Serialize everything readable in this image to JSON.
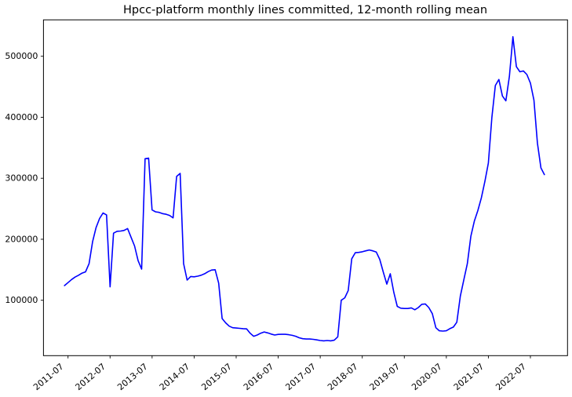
{
  "figure": {
    "background": "#ffffff"
  },
  "chart_data": {
    "type": "line",
    "title": "Hpcc-platform monthly lines committed, 12-month rolling mean",
    "xlabel": "",
    "ylabel": "",
    "grid": false,
    "legend": "none",
    "background": "#ffffff",
    "frame_color": "#000000",
    "tick_color": "#000000",
    "ylim": [
      9000,
      560000
    ],
    "xlim": [
      "2010-12",
      "2023-05"
    ],
    "y_ticks": [
      {
        "label": "100000",
        "value": 100000
      },
      {
        "label": "200000",
        "value": 200000
      },
      {
        "label": "300000",
        "value": 300000
      },
      {
        "label": "400000",
        "value": 400000
      },
      {
        "label": "500000",
        "value": 500000
      }
    ],
    "x_ticks": [
      {
        "label": "2011-07",
        "month_index": 1
      },
      {
        "label": "2012-07",
        "month_index": 13
      },
      {
        "label": "2013-07",
        "month_index": 25
      },
      {
        "label": "2014-07",
        "month_index": 37
      },
      {
        "label": "2015-07",
        "month_index": 49
      },
      {
        "label": "2016-07",
        "month_index": 61
      },
      {
        "label": "2017-07",
        "month_index": 73
      },
      {
        "label": "2018-07",
        "month_index": 85
      },
      {
        "label": "2019-07",
        "month_index": 97
      },
      {
        "label": "2020-07",
        "month_index": 109
      },
      {
        "label": "2021-07",
        "month_index": 121
      },
      {
        "label": "2022-07",
        "month_index": 133
      }
    ],
    "series": [
      {
        "name": "12-month rolling mean of monthly lines committed",
        "color": "#0000ff",
        "x": [
          "2011-06",
          "2011-07",
          "2011-08",
          "2011-09",
          "2011-10",
          "2011-11",
          "2011-12",
          "2012-01",
          "2012-02",
          "2012-03",
          "2012-04",
          "2012-05",
          "2012-06",
          "2012-07",
          "2012-08",
          "2012-09",
          "2012-10",
          "2012-11",
          "2012-12",
          "2013-01",
          "2013-02",
          "2013-03",
          "2013-04",
          "2013-05",
          "2013-06",
          "2013-07",
          "2013-08",
          "2013-09",
          "2013-10",
          "2013-11",
          "2013-12",
          "2014-01",
          "2014-02",
          "2014-03",
          "2014-04",
          "2014-05",
          "2014-06",
          "2014-07",
          "2014-08",
          "2014-09",
          "2014-10",
          "2014-11",
          "2014-12",
          "2015-01",
          "2015-02",
          "2015-03",
          "2015-04",
          "2015-05",
          "2015-06",
          "2015-07",
          "2015-08",
          "2015-09",
          "2015-10",
          "2015-11",
          "2015-12",
          "2016-01",
          "2016-02",
          "2016-03",
          "2016-04",
          "2016-05",
          "2016-06",
          "2016-07",
          "2016-08",
          "2016-09",
          "2016-10",
          "2016-11",
          "2016-12",
          "2017-01",
          "2017-02",
          "2017-03",
          "2017-04",
          "2017-05",
          "2017-06",
          "2017-07",
          "2017-08",
          "2017-09",
          "2017-10",
          "2017-11",
          "2017-12",
          "2018-01",
          "2018-02",
          "2018-03",
          "2018-04",
          "2018-05",
          "2018-06",
          "2018-07",
          "2018-08",
          "2018-09",
          "2018-10",
          "2018-11",
          "2018-12",
          "2019-01",
          "2019-02",
          "2019-03",
          "2019-04",
          "2019-05",
          "2019-06",
          "2019-07",
          "2019-08",
          "2019-09",
          "2019-10",
          "2019-11",
          "2019-12",
          "2020-01",
          "2020-02",
          "2020-03",
          "2020-04",
          "2020-05",
          "2020-06",
          "2020-07",
          "2020-08",
          "2020-09",
          "2020-10",
          "2020-11",
          "2020-12",
          "2021-01",
          "2021-02",
          "2021-03",
          "2021-04",
          "2021-05",
          "2021-06",
          "2021-07",
          "2021-08",
          "2021-09",
          "2021-10",
          "2021-11",
          "2021-12",
          "2022-01",
          "2022-02",
          "2022-03",
          "2022-04",
          "2022-05",
          "2022-06",
          "2022-07",
          "2022-08",
          "2022-09",
          "2022-10",
          "2022-11"
        ],
        "values": [
          124000,
          129000,
          134000,
          138000,
          141000,
          144500,
          146500,
          160000,
          196000,
          219000,
          234000,
          243000,
          240000,
          122000,
          210000,
          213000,
          213500,
          214500,
          217500,
          203000,
          189000,
          165000,
          151000,
          332000,
          333000,
          248000,
          245000,
          244000,
          242000,
          241000,
          239000,
          235000,
          303000,
          308000,
          160000,
          133000,
          139000,
          138500,
          139500,
          141000,
          143500,
          147000,
          149500,
          150000,
          128000,
          70000,
          63000,
          57500,
          55000,
          54500,
          54000,
          53500,
          53000,
          46000,
          41000,
          43000,
          46000,
          48000,
          46500,
          44500,
          43000,
          44000,
          44200,
          44200,
          43500,
          42500,
          41000,
          38500,
          37000,
          36500,
          36500,
          36000,
          35000,
          34000,
          33500,
          34000,
          33500,
          34500,
          40000,
          100000,
          104000,
          116000,
          168000,
          178000,
          178500,
          179500,
          181000,
          182500,
          181000,
          179000,
          167000,
          146000,
          126500,
          143500,
          113000,
          90000,
          87000,
          86500,
          86500,
          87500,
          84500,
          88000,
          93500,
          94000,
          88000,
          78000,
          55000,
          50000,
          49500,
          50000,
          53500,
          56000,
          64000,
          107000,
          134000,
          160000,
          205000,
          230000,
          247000,
          268000,
          295000,
          325000,
          400000,
          452000,
          462000,
          435000,
          427000,
          467000,
          532000,
          483000,
          474500,
          476000,
          470000,
          456000,
          428000,
          358000,
          317000,
          306000
        ]
      }
    ]
  }
}
